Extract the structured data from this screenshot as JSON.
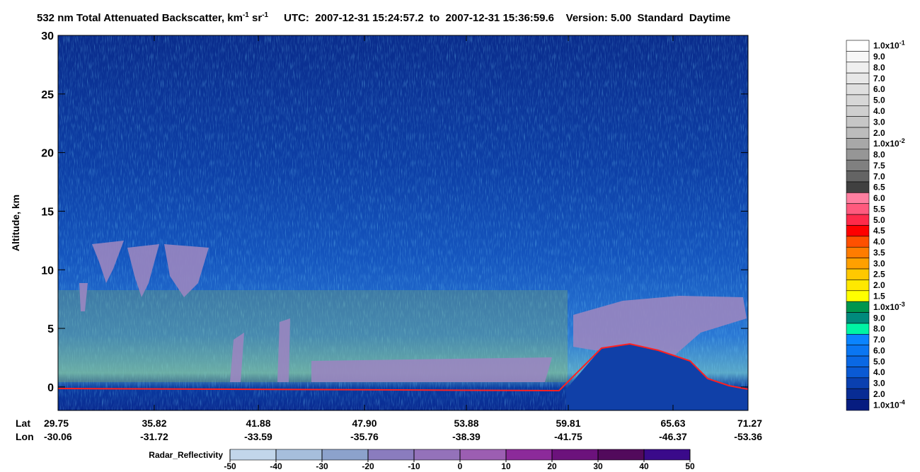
{
  "chart_data": {
    "type": "curtain",
    "title": {
      "text": "532 nm Total Attenuated Backscatter, km",
      "sup1": "-1",
      "unit2": " sr",
      "sup2": "-1",
      "info": "UTC:  2007-12-31 15:24:57.2  to  2007-12-31 15:36:59.6    Version: 5.00  Standard  Daytime"
    },
    "ylabel": "Altitude, km",
    "ylim": [
      -2,
      30
    ],
    "yticks": [
      0,
      5,
      10,
      15,
      20,
      25,
      30
    ],
    "x_axis": {
      "lat_label": "Lat",
      "lon_label": "Lon",
      "lat": [
        "29.75",
        "35.82",
        "41.88",
        "47.90",
        "53.88",
        "59.81",
        "65.63",
        "71.27"
      ],
      "lon": [
        "-30.06",
        "-31.72",
        "-33.59",
        "-35.76",
        "-38.39",
        "-41.75",
        "-46.37",
        "-53.36"
      ]
    },
    "colorbar": [
      {
        "label": "1.0x10",
        "exp": "-1",
        "color": "#ffffff"
      },
      {
        "label": "9.0",
        "color": "#f7f7f7"
      },
      {
        "label": "8.0",
        "color": "#efefef"
      },
      {
        "label": "7.0",
        "color": "#e7e7e7"
      },
      {
        "label": "6.0",
        "color": "#dfdfdf"
      },
      {
        "label": "5.0",
        "color": "#d7d7d7"
      },
      {
        "label": "4.0",
        "color": "#cfcfcf"
      },
      {
        "label": "3.0",
        "color": "#c6c6c6"
      },
      {
        "label": "2.0",
        "color": "#bcbcbc"
      },
      {
        "label": "1.0x10",
        "exp": "-2",
        "color": "#a8a8a8"
      },
      {
        "label": "8.0",
        "color": "#969696"
      },
      {
        "label": "7.5",
        "color": "#808080"
      },
      {
        "label": "7.0",
        "color": "#646464"
      },
      {
        "label": "6.5",
        "color": "#404040"
      },
      {
        "label": "6.0",
        "color": "#ff7fa0"
      },
      {
        "label": "5.5",
        "color": "#ff5a7e"
      },
      {
        "label": "5.0",
        "color": "#ff2a4a"
      },
      {
        "label": "4.5",
        "color": "#ff0000"
      },
      {
        "label": "4.0",
        "color": "#ff5000"
      },
      {
        "label": "3.5",
        "color": "#ff7c00"
      },
      {
        "label": "3.0",
        "color": "#ffa000"
      },
      {
        "label": "2.5",
        "color": "#ffc800"
      },
      {
        "label": "2.0",
        "color": "#ffe800"
      },
      {
        "label": "1.5",
        "color": "#ffff00"
      },
      {
        "label": "1.0x10",
        "exp": "-3",
        "color": "#00964e"
      },
      {
        "label": "9.0",
        "color": "#008a7c"
      },
      {
        "label": "8.0",
        "color": "#00f4a4"
      },
      {
        "label": "7.0",
        "color": "#0a84ff"
      },
      {
        "label": "6.0",
        "color": "#0a76f2"
      },
      {
        "label": "5.0",
        "color": "#0a68e4"
      },
      {
        "label": "4.0",
        "color": "#0a5ad4"
      },
      {
        "label": "3.0",
        "color": "#0a40b0"
      },
      {
        "label": "2.0",
        "color": "#082c94"
      },
      {
        "label": "1.0x10",
        "exp": "-4",
        "color": "#061c80"
      }
    ],
    "radar_colorbar": {
      "label": "Radar_Reflectivity",
      "xlim": [
        -50,
        50
      ],
      "ticks": [
        -50,
        -40,
        -30,
        -20,
        -10,
        0,
        10,
        20,
        30,
        40,
        50
      ],
      "colors": [
        "#c2d6ea",
        "#a6bedc",
        "#8ca2cc",
        "#8a7cbe",
        "#9472ba",
        "#9c5eb2",
        "#8c2a9a",
        "#6c127c",
        "#520a5c",
        "#3a0a8a"
      ]
    }
  }
}
